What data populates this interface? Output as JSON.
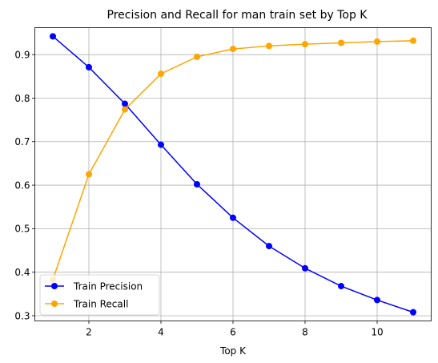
{
  "chart_data": {
    "type": "line",
    "title": "Precision and Recall for man train set by Top K",
    "xlabel": "Top K",
    "ylabel": "",
    "x": [
      1,
      2,
      3,
      4,
      5,
      6,
      7,
      8,
      9,
      10,
      11
    ],
    "xlim": [
      0.5,
      11.5
    ],
    "ylim": [
      0.288,
      0.962
    ],
    "xticks": [
      2,
      4,
      6,
      8,
      10
    ],
    "yticks": [
      0.3,
      0.4,
      0.5,
      0.6,
      0.7,
      0.8,
      0.9
    ],
    "grid": true,
    "legend_position": "lower-left",
    "series": [
      {
        "name": "Train Precision",
        "color": "#0000ff",
        "marker": "circle",
        "values": [
          0.942,
          0.871,
          0.787,
          0.693,
          0.602,
          0.525,
          0.46,
          0.409,
          0.368,
          0.336,
          0.308
        ]
      },
      {
        "name": "Train Recall",
        "color": "#ffa500",
        "marker": "circle",
        "values": [
          0.383,
          0.625,
          0.774,
          0.856,
          0.895,
          0.913,
          0.92,
          0.924,
          0.927,
          0.93,
          0.932
        ]
      }
    ]
  }
}
